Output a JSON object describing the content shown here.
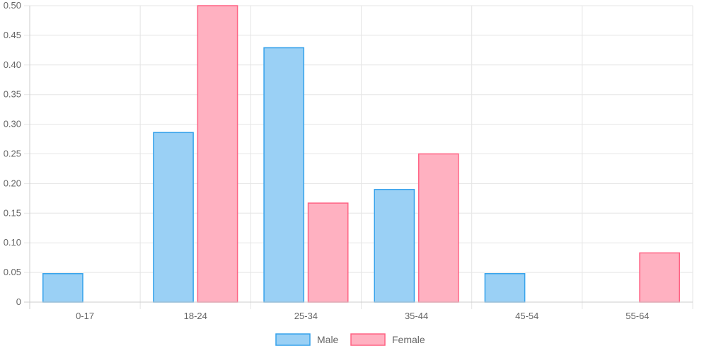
{
  "chart_data": {
    "type": "bar",
    "categories": [
      "0-17",
      "18-24",
      "25-34",
      "35-44",
      "45-54",
      "55-64"
    ],
    "series": [
      {
        "name": "Male",
        "values": [
          0.048,
          0.286,
          0.429,
          0.19,
          0.048,
          0
        ],
        "fill": "#9ad0f5",
        "stroke": "#36a2eb"
      },
      {
        "name": "Female",
        "values": [
          0,
          0.5,
          0.167,
          0.25,
          0,
          0.083
        ],
        "fill": "#ffb1c1",
        "stroke": "#ff6384"
      }
    ],
    "ylim": [
      0,
      0.5
    ],
    "yticks": [
      "0",
      "0.05",
      "0.10",
      "0.15",
      "0.20",
      "0.25",
      "0.30",
      "0.35",
      "0.40",
      "0.45",
      "0.50"
    ],
    "grid": true,
    "legend_position": "bottom"
  }
}
